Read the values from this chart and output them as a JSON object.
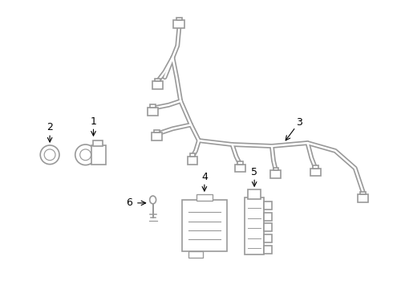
{
  "background_color": "#ffffff",
  "line_color": "#999999",
  "line_width": 1.2,
  "label_color": "#000000",
  "figsize": [
    4.9,
    3.6
  ],
  "dpi": 100
}
